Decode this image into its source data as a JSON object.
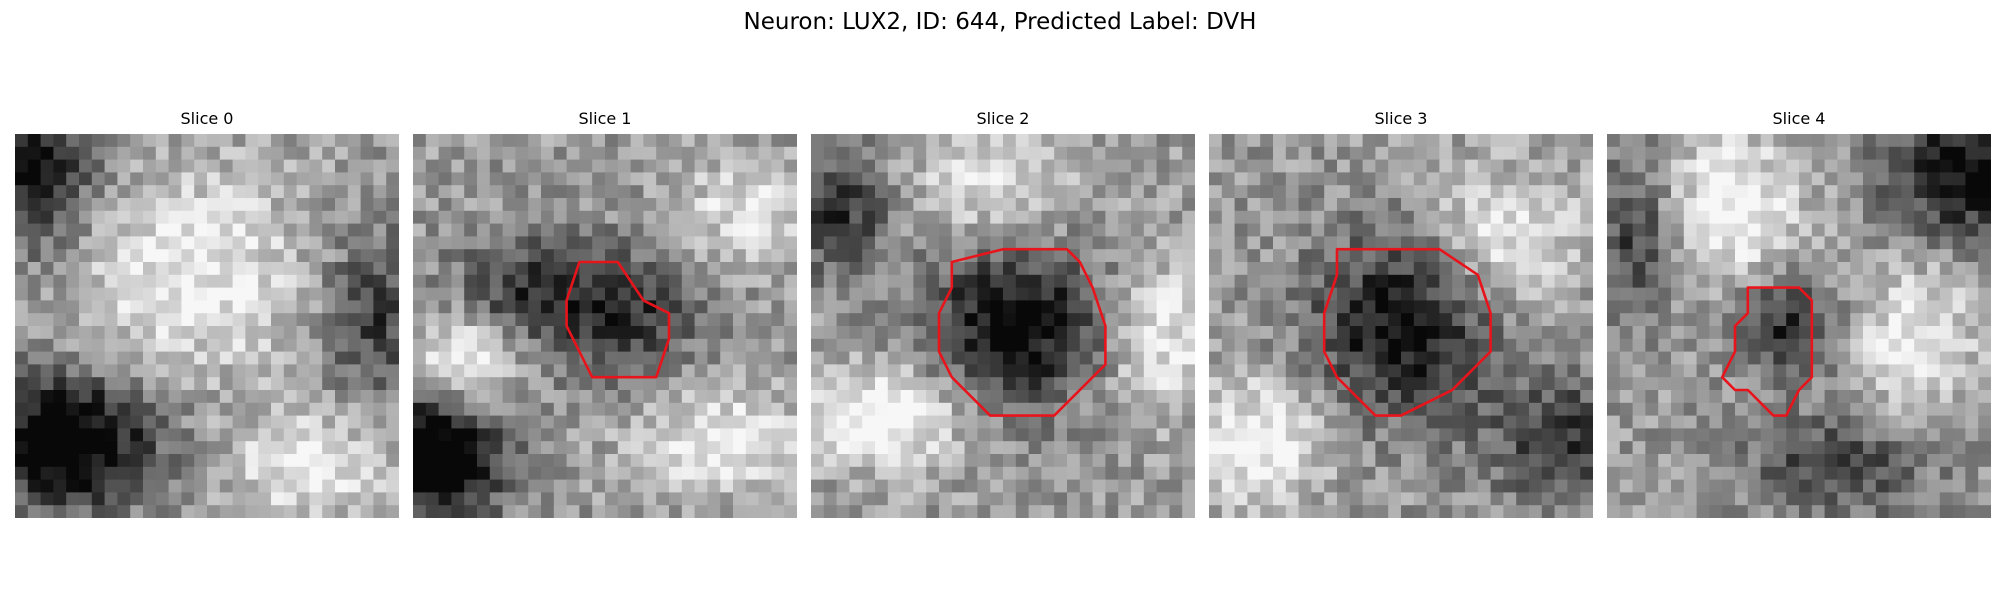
{
  "figure": {
    "title": "Neuron: LUX2, ID: 644, Predicted Label: DVH"
  },
  "panels": [
    {
      "title": "Slice 0",
      "has_contour": false,
      "contour_color": "#e8141c",
      "dark_regions": [
        {
          "cx": 4,
          "cy": 24,
          "rx": 7,
          "ry": 5,
          "w": 0.75
        },
        {
          "cx": 1,
          "cy": 3,
          "rx": 5,
          "ry": 6,
          "w": 0.55
        },
        {
          "cx": 28,
          "cy": 14,
          "rx": 4,
          "ry": 6,
          "w": 0.4
        }
      ],
      "bright_regions": [
        {
          "cx": 14,
          "cy": 11,
          "rx": 9,
          "ry": 8,
          "w": 0.35
        },
        {
          "cx": 23,
          "cy": 26,
          "rx": 6,
          "ry": 4,
          "w": 0.35
        }
      ]
    },
    {
      "title": "Slice 1",
      "has_contour": true,
      "contour_color": "#e8141c",
      "contour": [
        [
          13,
          10
        ],
        [
          16,
          10
        ],
        [
          18,
          13
        ],
        [
          20,
          14
        ],
        [
          20,
          16
        ],
        [
          19,
          19
        ],
        [
          17,
          19
        ],
        [
          16,
          19
        ],
        [
          14,
          19
        ],
        [
          13,
          17
        ],
        [
          12,
          15
        ],
        [
          12,
          13
        ]
      ],
      "dark_regions": [
        {
          "cx": 2,
          "cy": 25,
          "rx": 5,
          "ry": 5,
          "w": 0.8
        },
        {
          "cx": 16,
          "cy": 14,
          "rx": 6,
          "ry": 5,
          "w": 0.45
        },
        {
          "cx": 8,
          "cy": 12,
          "rx": 5,
          "ry": 4,
          "w": 0.35
        }
      ],
      "bright_regions": [
        {
          "cx": 4,
          "cy": 18,
          "rx": 4,
          "ry": 4,
          "w": 0.45
        },
        {
          "cx": 24,
          "cy": 24,
          "rx": 7,
          "ry": 4,
          "w": 0.35
        },
        {
          "cx": 26,
          "cy": 6,
          "rx": 5,
          "ry": 4,
          "w": 0.3
        }
      ]
    },
    {
      "title": "Slice 2",
      "has_contour": true,
      "contour_color": "#e8141c",
      "contour": [
        [
          11,
          10
        ],
        [
          15,
          9
        ],
        [
          20,
          9
        ],
        [
          21,
          10
        ],
        [
          22,
          12
        ],
        [
          23,
          15
        ],
        [
          23,
          18
        ],
        [
          19,
          22
        ],
        [
          14,
          22
        ],
        [
          12,
          20
        ],
        [
          11,
          19
        ],
        [
          10,
          17
        ],
        [
          10,
          14
        ],
        [
          11,
          12
        ]
      ],
      "dark_regions": [
        {
          "cx": 16,
          "cy": 15,
          "rx": 7,
          "ry": 6,
          "w": 0.6
        },
        {
          "cx": 2,
          "cy": 6,
          "rx": 4,
          "ry": 5,
          "w": 0.4
        }
      ],
      "bright_regions": [
        {
          "cx": 6,
          "cy": 22,
          "rx": 6,
          "ry": 4,
          "w": 0.45
        },
        {
          "cx": 14,
          "cy": 4,
          "rx": 6,
          "ry": 4,
          "w": 0.3
        },
        {
          "cx": 27,
          "cy": 16,
          "rx": 4,
          "ry": 6,
          "w": 0.35
        }
      ]
    },
    {
      "title": "Slice 3",
      "has_contour": true,
      "contour_color": "#e8141c",
      "contour": [
        [
          10,
          9
        ],
        [
          18,
          9
        ],
        [
          21,
          11
        ],
        [
          22,
          14
        ],
        [
          22,
          17
        ],
        [
          20,
          19
        ],
        [
          19,
          20
        ],
        [
          17,
          21
        ],
        [
          15,
          22
        ],
        [
          13,
          22
        ],
        [
          11,
          20
        ],
        [
          10,
          19
        ],
        [
          9,
          17
        ],
        [
          9,
          14
        ],
        [
          10,
          11
        ]
      ],
      "dark_regions": [
        {
          "cx": 15,
          "cy": 15,
          "rx": 7,
          "ry": 7,
          "w": 0.55
        },
        {
          "cx": 28,
          "cy": 24,
          "rx": 6,
          "ry": 5,
          "w": 0.4
        }
      ],
      "bright_regions": [
        {
          "cx": 4,
          "cy": 24,
          "rx": 5,
          "ry": 5,
          "w": 0.4
        },
        {
          "cx": 23,
          "cy": 8,
          "rx": 6,
          "ry": 5,
          "w": 0.35
        }
      ]
    },
    {
      "title": "Slice 4",
      "has_contour": true,
      "contour_color": "#e8141c",
      "contour": [
        [
          11,
          12
        ],
        [
          13,
          12
        ],
        [
          15,
          12
        ],
        [
          16,
          13
        ],
        [
          16,
          16
        ],
        [
          16,
          19
        ],
        [
          15,
          20
        ],
        [
          14,
          22
        ],
        [
          13,
          22
        ],
        [
          12,
          21
        ],
        [
          11,
          20
        ],
        [
          10,
          20
        ],
        [
          9,
          19
        ],
        [
          10,
          17
        ],
        [
          10,
          15
        ],
        [
          11,
          14
        ]
      ],
      "dark_regions": [
        {
          "cx": 28,
          "cy": 3,
          "rx": 6,
          "ry": 5,
          "w": 0.6
        },
        {
          "cx": 14,
          "cy": 15,
          "rx": 4,
          "ry": 4,
          "w": 0.45
        },
        {
          "cx": 2,
          "cy": 8,
          "rx": 3,
          "ry": 6,
          "w": 0.35
        },
        {
          "cx": 18,
          "cy": 26,
          "rx": 7,
          "ry": 4,
          "w": 0.35
        }
      ],
      "bright_regions": [
        {
          "cx": 10,
          "cy": 6,
          "rx": 5,
          "ry": 6,
          "w": 0.4
        },
        {
          "cx": 24,
          "cy": 16,
          "rx": 5,
          "ry": 6,
          "w": 0.35
        }
      ]
    }
  ]
}
